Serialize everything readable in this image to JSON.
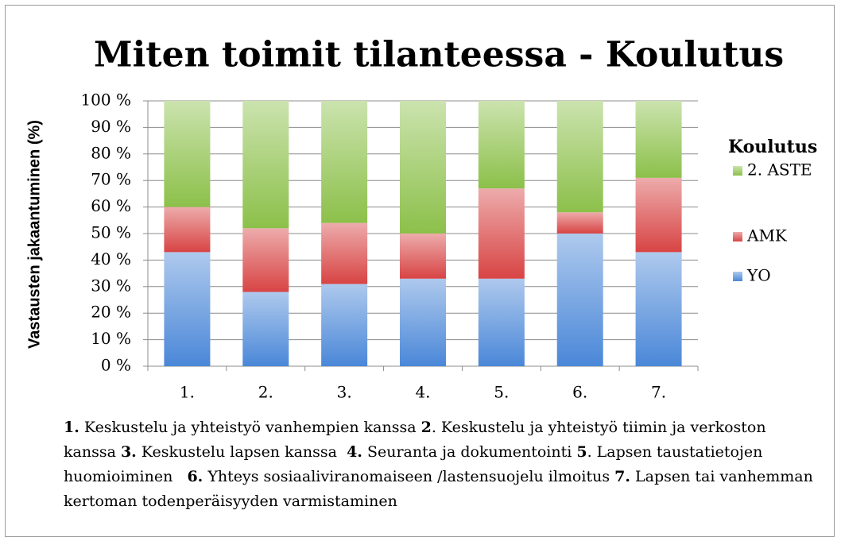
{
  "chart_data": {
    "type": "stacked_bar",
    "title": "Miten toimit tilanteessa - Koulutus",
    "y_label": "Vastausten jakaantuminen (%)",
    "legend_title": "Koulutus",
    "categories": [
      "1.",
      "2.",
      "3.",
      "4.",
      "5.",
      "6.",
      "7."
    ],
    "series": [
      {
        "name": "YO",
        "color": "#4a87d8",
        "values": [
          43,
          28,
          31,
          33,
          33,
          50,
          43
        ]
      },
      {
        "name": "AMK",
        "color": "#d84444",
        "values": [
          17,
          24,
          23,
          17,
          34,
          8,
          28
        ]
      },
      {
        "name": "2. ASTE",
        "color": "#8cc04a",
        "values": [
          40,
          48,
          46,
          50,
          33,
          42,
          29
        ]
      }
    ],
    "ylim": [
      0,
      100
    ],
    "yticks": [
      {
        "value": 0,
        "label": "0 %"
      },
      {
        "value": 10,
        "label": "10 %"
      },
      {
        "value": 20,
        "label": "20 %"
      },
      {
        "value": 30,
        "label": "30 %"
      },
      {
        "value": 40,
        "label": "40 %"
      },
      {
        "value": 50,
        "label": "50 %"
      },
      {
        "value": 60,
        "label": "60 %"
      },
      {
        "value": 70,
        "label": "70 %"
      },
      {
        "value": 80,
        "label": "80 %"
      },
      {
        "value": 90,
        "label": "90 %"
      },
      {
        "value": 100,
        "label": "100 %"
      }
    ],
    "grid": true,
    "legend": "right",
    "caption": [
      {
        "number": "1.",
        "text": " Keskustelu ja yhteistyö vanhempien kanssa "
      },
      {
        "number": "2",
        "text": ". Keskustelu ja yhteistyö tiimin ja verkoston kanssa "
      },
      {
        "number": "3.",
        "text": " Keskustelu lapsen kanssa  "
      },
      {
        "number": "4.",
        "text": " Seuranta ja dokumentointi "
      },
      {
        "number": "5",
        "text": ". Lapsen taustatietojen huomioiminen   "
      },
      {
        "number": "6.",
        "text": " Yhteys sosiaaliviranomaiseen /lastensuojelu ilmoitus "
      },
      {
        "number": "7.",
        "text": " Lapsen tai vanhemman kertoman todenperäisyyden varmistaminen"
      }
    ]
  }
}
